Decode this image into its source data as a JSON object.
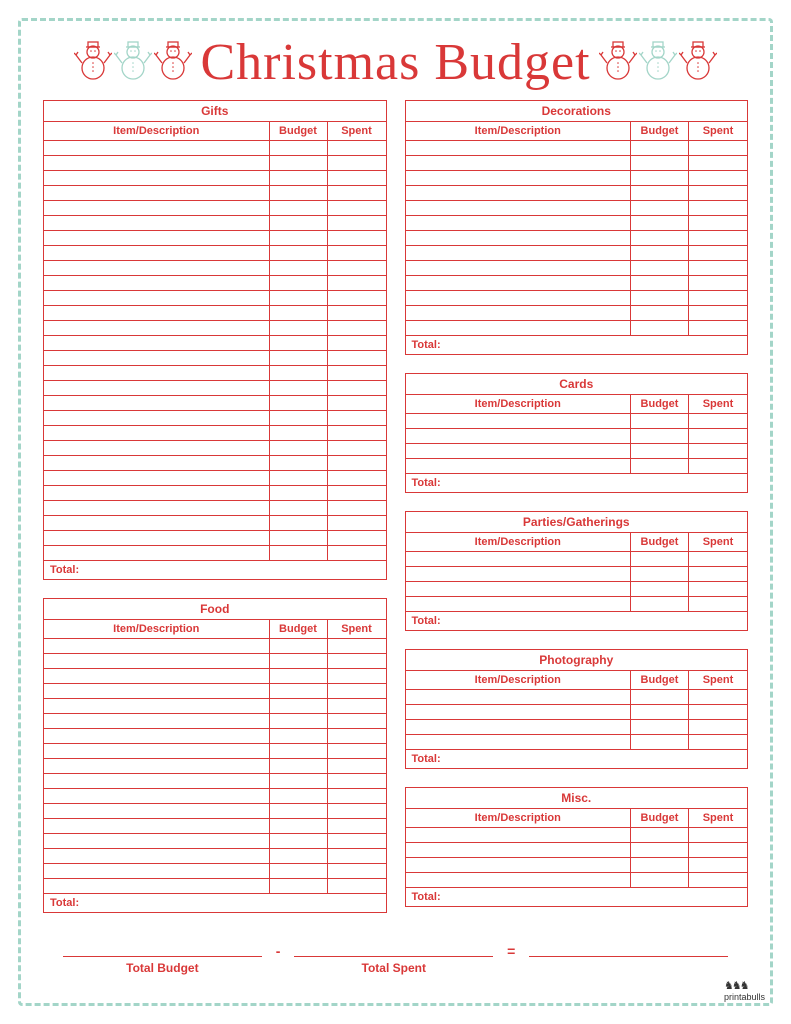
{
  "title": "Christmas Budget",
  "colors": {
    "red": "#d93838",
    "mint": "#a3d5c8",
    "bg": "#ffffff"
  },
  "columns": {
    "item": "Item/Description",
    "budget": "Budget",
    "spent": "Spent"
  },
  "total_label": "Total:",
  "sections": {
    "left": [
      {
        "title": "Gifts",
        "rows": 28
      },
      {
        "title": "Food",
        "rows": 17
      }
    ],
    "right": [
      {
        "title": "Decorations",
        "rows": 13
      },
      {
        "title": "Cards",
        "rows": 4
      },
      {
        "title": "Parties/Gatherings",
        "rows": 4
      },
      {
        "title": "Photography",
        "rows": 4
      },
      {
        "title": "Misc.",
        "rows": 4
      }
    ]
  },
  "footer": {
    "total_budget": "Total Budget",
    "minus": "-",
    "total_spent": "Total Spent",
    "equals": "="
  },
  "watermark": "printabulls",
  "snowman_colors": [
    "#d93838",
    "#a3d5c8",
    "#d93838"
  ]
}
